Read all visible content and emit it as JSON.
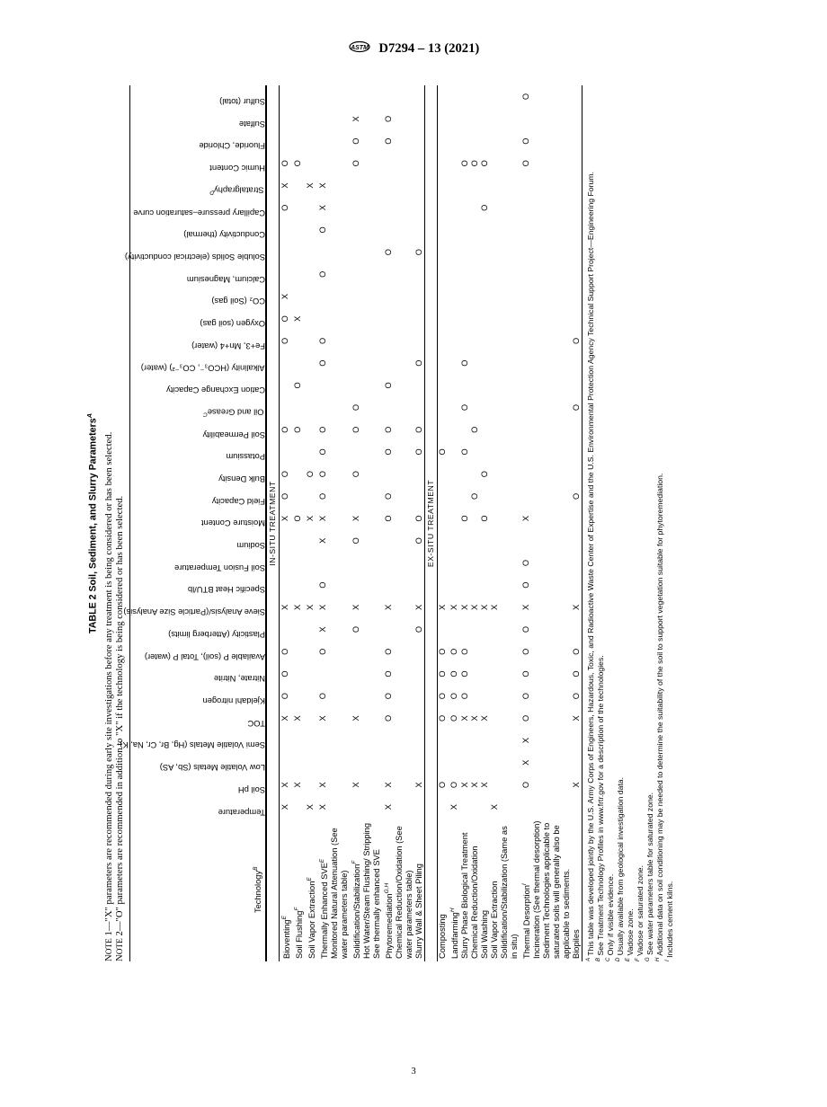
{
  "header": {
    "standard_number": "D7294 – 13 (2021)"
  },
  "table": {
    "title": "TABLE 2 Soil, Sediment, and Slurry Parameters",
    "title_sup": "A",
    "note1": "NOTE 1—\"X\" parameters are recommended during early site investigations before any treatment is being considered or has been selected.",
    "note2": "NOTE 2—\"O\" parameters are recommended in addition to \"X\" if the technology is being considered or has been selected.",
    "tech_header": "Technology",
    "tech_header_sup": "B",
    "columns": [
      "Temperature",
      "Soil pH",
      "Low Volatile Metals (Sb, AS)",
      "Semi Volatile Metals (Hg, Br, Cr, Na, K)",
      "TOC",
      "Kjeldahl nitrogen",
      "Nitrate, Nitrite",
      "Available P (soil), Total P (water)",
      "Plasticity (Atterberg limits)",
      "Sieve Analysis/(Particle Size Analysis)",
      "Specific Heat BTU/lb",
      "Soil Fusion Temperature",
      "Sodium",
      "Moisture Content",
      "Field Capacity",
      "Bulk Density",
      "Potassium",
      "Soil Permeability",
      "Oil and Grease",
      "Cation Exchange Capacity",
      "Alkalinity (HCO₃⁻, CO₃⁻²) (water)",
      "Fe+3, Mn+4 (water)",
      "Oxygen (soil gas)",
      "CO₂ (Soil gas)",
      "Calcium, Magnesium",
      "Soluble Solids (electrical conductivity)",
      "Conductivity (thermal)",
      "Capillary pressure–saturation curve",
      "Stratalgraphy",
      "Humic Content",
      "Fluoride, Chloride",
      "Sulfate",
      "Sulfur (total)"
    ],
    "col_sups": {
      "18": "C",
      "28": "D"
    },
    "section1": "IN-SITU TREATMENT",
    "section2": "EX-SITU TREATMENT",
    "rows_insitu": [
      {
        "name": "Bioventing",
        "sup": "E",
        "cells": [
          "X",
          "X",
          "",
          "",
          "X",
          "O",
          "O",
          "O",
          "",
          "X",
          "",
          "",
          "",
          "X",
          "O",
          "O",
          "",
          "O",
          "",
          "",
          "",
          "O",
          "O",
          "X",
          "",
          "",
          "",
          "O",
          "X",
          "O",
          "",
          "",
          ""
        ]
      },
      {
        "name": "Soil Flushing",
        "sup": "F",
        "cells": [
          "",
          "X",
          "",
          "",
          "X",
          "",
          "",
          "",
          "",
          "X",
          "",
          "",
          "",
          "O",
          "",
          "",
          "",
          "O",
          "",
          "O",
          "",
          "",
          "X",
          "",
          "",
          "",
          "",
          "",
          "",
          "O",
          "",
          "",
          ""
        ]
      },
      {
        "name": "Soil Vapor Extraction",
        "sup": "E",
        "cells": [
          "X",
          "",
          "",
          "",
          "",
          "",
          "",
          "",
          "",
          "X",
          "",
          "",
          "",
          "X",
          "",
          "O",
          "",
          "",
          "",
          "",
          "",
          "",
          "",
          "",
          "",
          "",
          "",
          "",
          "X",
          "",
          "",
          "",
          ""
        ]
      },
      {
        "name": "Thermally Enhanced SVE",
        "sup": "E",
        "cells": [
          "X",
          "X",
          "",
          "",
          "X",
          "O",
          "",
          "O",
          "X",
          "X",
          "O",
          "",
          "X",
          "X",
          "O",
          "O",
          "O",
          "O",
          "",
          "",
          "O",
          "O",
          "",
          "",
          "O",
          "",
          "O",
          "X",
          "X",
          "",
          "",
          "",
          ""
        ]
      },
      {
        "name": "Monitored Natural Attenuation (See water parameters table)",
        "sup": "",
        "cells": [
          "",
          "",
          "",
          "",
          "",
          "",
          "",
          "",
          "",
          "",
          "",
          "",
          "",
          "",
          "",
          "",
          "",
          "",
          "",
          "",
          "",
          "",
          "",
          "",
          "",
          "",
          "",
          "",
          "",
          "",
          "",
          "",
          ""
        ]
      },
      {
        "name": "Solidification/Stabilization",
        "sup": "F",
        "cells": [
          "",
          "X",
          "",
          "",
          "X",
          "",
          "",
          "",
          "O",
          "X",
          "",
          "",
          "O",
          "X",
          "",
          "O",
          "",
          "O",
          "O",
          "",
          "",
          "",
          "",
          "",
          "",
          "",
          "",
          "",
          "",
          "O",
          "O",
          "X",
          ""
        ]
      },
      {
        "name": "Hot Water/Steam Flushing/ Stripping",
        "sup": "",
        "cells": [
          "",
          "",
          "",
          "",
          "",
          "",
          "",
          "",
          "",
          "",
          "",
          "",
          "",
          "",
          "",
          "",
          "",
          "",
          "",
          "",
          "",
          "",
          "",
          "",
          "",
          "",
          "",
          "",
          "",
          "",
          "",
          "",
          ""
        ]
      },
      {
        "name": "See thermally enhanced SVE",
        "sup": "",
        "cells": [
          "",
          "",
          "",
          "",
          "",
          "",
          "",
          "",
          "",
          "",
          "",
          "",
          "",
          "",
          "",
          "",
          "",
          "",
          "",
          "",
          "",
          "",
          "",
          "",
          "",
          "",
          "",
          "",
          "",
          "",
          "",
          "",
          ""
        ]
      },
      {
        "name": "Phytoremediation",
        "sup": "G,H",
        "cells": [
          "X",
          "X",
          "",
          "",
          "O",
          "O",
          "O",
          "O",
          "",
          "X",
          "",
          "",
          "",
          "O",
          "O",
          "",
          "O",
          "O",
          "",
          "O",
          "",
          "",
          "",
          "",
          "",
          "O",
          "",
          "",
          "",
          "",
          "O",
          "O",
          ""
        ]
      },
      {
        "name": "Chemical Reduction/Oxidation (See water parameters table)",
        "sup": "",
        "cells": [
          "",
          "",
          "",
          "",
          "",
          "",
          "",
          "",
          "",
          "",
          "",
          "",
          "",
          "",
          "",
          "",
          "",
          "",
          "",
          "",
          "",
          "",
          "",
          "",
          "",
          "",
          "",
          "",
          "",
          "",
          "",
          "",
          ""
        ]
      },
      {
        "name": "Slurry Wall & Sheet Piling",
        "sup": "",
        "cells": [
          "",
          "X",
          "",
          "",
          "",
          "",
          "",
          "",
          "O",
          "X",
          "",
          "",
          "O",
          "O",
          "",
          "",
          "O",
          "O",
          "",
          "",
          "O",
          "",
          "",
          "",
          "",
          "O",
          "",
          "",
          "",
          "",
          "",
          "",
          ""
        ]
      }
    ],
    "rows_exsitu": [
      {
        "name": "Composting",
        "sup": "",
        "cells": [
          "",
          "O",
          "",
          "",
          "O",
          "O",
          "O",
          "O",
          "",
          "X",
          "",
          "",
          "",
          "",
          "",
          "",
          "O",
          "",
          "",
          "",
          "",
          "",
          "",
          "",
          "",
          "",
          "",
          "",
          "",
          "",
          "",
          "",
          ""
        ]
      },
      {
        "name": "Landfarming",
        "sup": "H",
        "cells": [
          "X",
          "O",
          "",
          "",
          "O",
          "O",
          "O",
          "O",
          "",
          "X",
          "",
          "",
          "",
          "",
          "",
          "",
          "",
          "",
          "",
          "",
          "",
          "",
          "",
          "",
          "",
          "",
          "",
          "",
          "",
          "",
          "",
          "",
          ""
        ]
      },
      {
        "name": "Slurry Phase Biological Treatment",
        "sup": "",
        "cells": [
          "",
          "X",
          "",
          "",
          "X",
          "O",
          "O",
          "O",
          "",
          "X",
          "",
          "",
          "",
          "O",
          "",
          "",
          "O",
          "",
          "O",
          "",
          "O",
          "",
          "",
          "",
          "",
          "",
          "",
          "",
          "",
          "O",
          "",
          "",
          ""
        ]
      },
      {
        "name": "Chemical Reduction/Oxidation",
        "sup": "",
        "cells": [
          "",
          "X",
          "",
          "",
          "X",
          "",
          "",
          "",
          "",
          "X",
          "",
          "",
          "",
          "",
          "O",
          "",
          "",
          "O",
          "",
          "",
          "",
          "",
          "",
          "",
          "",
          "",
          "",
          "",
          "",
          "O",
          "",
          "",
          ""
        ]
      },
      {
        "name": "Soil Washing",
        "sup": "",
        "cells": [
          "",
          "X",
          "",
          "",
          "X",
          "",
          "",
          "",
          "",
          "X",
          "",
          "",
          "",
          "O",
          "",
          "O",
          "",
          "",
          "",
          "",
          "",
          "",
          "",
          "",
          "",
          "",
          "",
          "O",
          "",
          "O",
          "",
          "",
          ""
        ]
      },
      {
        "name": "Soil Vapor Extraction",
        "sup": "",
        "cells": [
          "X",
          "",
          "",
          "",
          "",
          "",
          "",
          "",
          "",
          "X",
          "",
          "",
          "",
          "",
          "",
          "",
          "",
          "",
          "",
          "",
          "",
          "",
          "",
          "",
          "",
          "",
          "",
          "",
          "",
          "",
          "",
          "",
          ""
        ]
      },
      {
        "name": "Solidification/Stabilization (Same as in situ)",
        "sup": "",
        "cells": [
          "",
          "",
          "",
          "",
          "",
          "",
          "",
          "",
          "",
          "",
          "",
          "",
          "",
          "",
          "",
          "",
          "",
          "",
          "",
          "",
          "",
          "",
          "",
          "",
          "",
          "",
          "",
          "",
          "",
          "",
          "",
          "",
          ""
        ]
      },
      {
        "name": "Thermal Desorption",
        "sup": "I",
        "cells": [
          "",
          "O",
          "X",
          "X",
          "O",
          "O",
          "O",
          "O",
          "O",
          "X",
          "O",
          "O",
          "",
          "X",
          "",
          "",
          "",
          "",
          "",
          "",
          "",
          "",
          "",
          "",
          "",
          "",
          "",
          "",
          "",
          "O",
          "O",
          "",
          "O"
        ]
      },
      {
        "name": "Incineration (See thermal desorption)",
        "sup": "",
        "cells": [
          "",
          "",
          "",
          "",
          "",
          "",
          "",
          "",
          "",
          "",
          "",
          "",
          "",
          "",
          "",
          "",
          "",
          "",
          "",
          "",
          "",
          "",
          "",
          "",
          "",
          "",
          "",
          "",
          "",
          "",
          "",
          "",
          ""
        ]
      },
      {
        "name": "Sediment Technologies applicable to saturated soils will generally also be applicable to sediments.",
        "sup": "",
        "cells": [
          "",
          "",
          "",
          "",
          "",
          "",
          "",
          "",
          "",
          "",
          "",
          "",
          "",
          "",
          "",
          "",
          "",
          "",
          "",
          "",
          "",
          "",
          "",
          "",
          "",
          "",
          "",
          "",
          "",
          "",
          "",
          "",
          ""
        ]
      },
      {
        "name": "Biopiles",
        "sup": "",
        "cells": [
          "",
          "X",
          "",
          "",
          "X",
          "O",
          "O",
          "O",
          "",
          "X",
          "",
          "",
          "",
          "",
          "O",
          "",
          "",
          "",
          "O",
          "",
          "",
          "O",
          "",
          "",
          "",
          "",
          "",
          "",
          "",
          "",
          "",
          "",
          ""
        ]
      }
    ]
  },
  "footnotes": [
    {
      "sup": "A",
      "text": "This table was developed jointly by the U.S. Army Corps of Engineers, Hazardous, Toxic, and Radioactive Waste Center of Expertise and the U.S. Environmental Protection Agency Technical Support Project—Engineering Forum."
    },
    {
      "sup": "B",
      "text": "See Treatment Technology Profiles in www.frtr.gov for a description of the technologies."
    },
    {
      "sup": "C",
      "text": "Only if visible evidence."
    },
    {
      "sup": "D",
      "text": "Usually available from geological investigation data."
    },
    {
      "sup": "E",
      "text": "Vadose zone."
    },
    {
      "sup": "F",
      "text": "Vadose or saturated zone."
    },
    {
      "sup": "G",
      "text": "See water parameters table for saturated zone."
    },
    {
      "sup": "H",
      "text": "Additional data on soil conditioning may be needed to determine the suitability of the soil to support vegetation suitable for phytoremediation."
    },
    {
      "sup": "I",
      "text": "Includes cement kilns."
    }
  ],
  "pagenum": "3"
}
